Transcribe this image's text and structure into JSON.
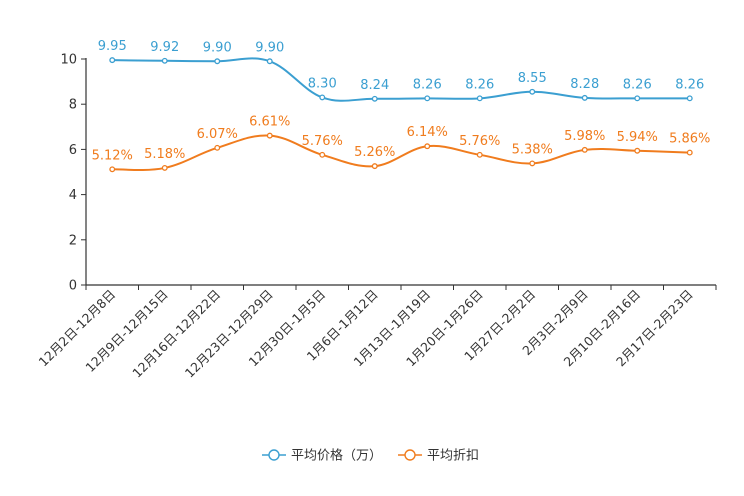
{
  "chart_data": {
    "type": "line",
    "title": "",
    "xlabel": "",
    "ylabel": "",
    "ylim": [
      0,
      10
    ],
    "yticks": [
      0,
      2,
      4,
      6,
      8,
      10
    ],
    "grid": false,
    "legend_position": "bottom-center",
    "categories": [
      "12月2日-12月8日",
      "12月9日-12月15日",
      "12月16日-12月22日",
      "12月23日-12月29日",
      "12月30日-1月5日",
      "1月6日-1月12日",
      "1月13日-1月19日",
      "1月20日-1月26日",
      "1月27日-2月2日",
      "2月3日-2月9日",
      "2月10日-2月16日",
      "2月17日-2月23日"
    ],
    "series": [
      {
        "name": "平均价格（万）",
        "color": "#3b9fd1",
        "values": [
          9.95,
          9.92,
          9.9,
          9.9,
          8.3,
          8.24,
          8.26,
          8.26,
          8.55,
          8.28,
          8.26,
          8.26
        ],
        "labels": [
          "9.95",
          "9.92",
          "9.90",
          "9.90",
          "8.30",
          "8.24",
          "8.26",
          "8.26",
          "8.55",
          "8.28",
          "8.26",
          "8.26"
        ]
      },
      {
        "name": "平均折扣",
        "color": "#f07c1e",
        "values": [
          5.12,
          5.18,
          6.07,
          6.61,
          5.76,
          5.26,
          6.14,
          5.76,
          5.38,
          5.98,
          5.94,
          5.86
        ],
        "labels": [
          "5.12%",
          "5.18%",
          "6.07%",
          "6.61%",
          "5.76%",
          "5.26%",
          "6.14%",
          "5.76%",
          "5.38%",
          "5.98%",
          "5.94%",
          "5.86%"
        ]
      }
    ]
  }
}
